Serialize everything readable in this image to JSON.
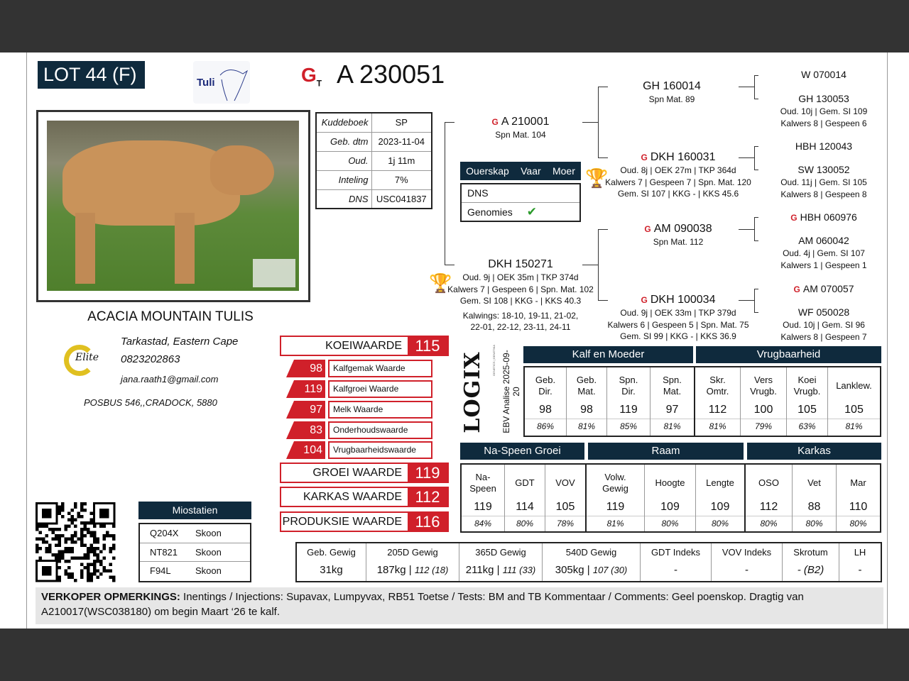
{
  "lot": "LOT 44 (F)",
  "id": "A 230051",
  "logo_tuli": "Tuli",
  "logo_gt": "GT",
  "info": [
    {
      "k": "Kuddeboek",
      "v": "SP"
    },
    {
      "k": "Geb. dtm",
      "v": "2023-11-04"
    },
    {
      "k": "Oud.",
      "v": "1j 11m"
    },
    {
      "k": "Inteling",
      "v": "7%"
    },
    {
      "k": "DNS",
      "v": "USC041837"
    }
  ],
  "parentage": {
    "headers": [
      "Ouerskap",
      "Vaar",
      "Moer"
    ],
    "rows": [
      "DNS",
      "Genomies"
    ],
    "genomies_check": "✔"
  },
  "pedigree": {
    "sire": {
      "name": "A 210001",
      "lines": [
        "Spn Mat. 104"
      ]
    },
    "dam": {
      "name": "DKH 150271",
      "lines": [
        "Oud. 9j | OEK 35m | TKP 374d",
        "Kalwers 7 | Gespeen 6 | Spn. Mat. 102",
        "Gem. SI 108 | KKG - | KKS 40.3"
      ],
      "calvings": [
        "Kalwings: 18-10, 19-11, 21-02,",
        "22-01, 22-12, 23-11, 24-11"
      ]
    },
    "ss": {
      "name": "GH 160014",
      "lines": [
        "Spn Mat. 89"
      ]
    },
    "sd": {
      "name": "DKH 160031",
      "lines": [
        "Oud. 8j | OEK 27m | TKP 364d",
        "Kalwers 7 | Gespeen 7 | Spn. Mat. 120",
        "Gem. SI 107 | KKG - | KKS 45.6"
      ]
    },
    "ds": {
      "name": "AM 090038",
      "lines": [
        "Spn Mat. 112"
      ]
    },
    "dd": {
      "name": "DKH 100034",
      "lines": [
        "Oud. 9j | OEK 33m | TKP 379d",
        "Kalwers 6 | Gespeen 5 | Spn. Mat. 75",
        "Gem. SI 99 | KKG - | KKS 36.9"
      ]
    },
    "g": [
      {
        "name": "W 070014",
        "lines": []
      },
      {
        "name": "GH 130053",
        "lines": [
          "Oud. 10j | Gem. SI 109",
          "Kalwers 8 | Gespeen 6"
        ]
      },
      {
        "name": "HBH 120043",
        "lines": []
      },
      {
        "name": "SW 130052",
        "lines": [
          "Oud. 11j | Gem. SI 105",
          "Kalwers 8 | Gespeen 8"
        ]
      },
      {
        "name": "HBH 060976",
        "lines": []
      },
      {
        "name": "AM 060042",
        "lines": [
          "Oud. 4j | Gem. SI 107",
          "Kalwers 1 | Gespeen 1"
        ]
      },
      {
        "name": "AM 070057",
        "lines": []
      },
      {
        "name": "WF 050028",
        "lines": [
          "Oud. 10j | Gem. SI 96",
          "Kalwers 8 | Gespeen 7"
        ]
      }
    ]
  },
  "breeder": {
    "farm": "ACACIA MOUNTAIN TULIS",
    "location": "Tarkastad, Eastern Cape",
    "phone": "0823202863",
    "email": "jana.raath1@gmail.com",
    "address": "POSBUS  546,,CRADOCK,  5880",
    "logo": "Elite"
  },
  "indexes": {
    "koei": {
      "label": "KOEIWAARDE",
      "value": "115"
    },
    "sub": [
      {
        "v": "98",
        "l": "Kalfgemak Waarde"
      },
      {
        "v": "119",
        "l": "Kalfgroei Waarde"
      },
      {
        "v": "97",
        "l": "Melk Waarde"
      },
      {
        "v": "83",
        "l": "Onderhoudswaarde"
      },
      {
        "v": "104",
        "l": "Vrugbaarheidswaarde"
      }
    ],
    "main": [
      {
        "label": "GROEI WAARDE",
        "value": "119"
      },
      {
        "label": "KARKAS WAARDE",
        "value": "112"
      },
      {
        "label": "PRODUKSIE WAARDE",
        "value": "116"
      }
    ]
  },
  "logix": {
    "brand": "LOGIX",
    "tag": "GENETICS | GENETIKA",
    "analysis": "EBV Analise 2025-09-20"
  },
  "ebv1": {
    "groups": [
      "Kalf en Moeder",
      "Vrugbaarheid"
    ],
    "cols": [
      {
        "h": [
          "Geb.",
          "Dir."
        ],
        "v": "98",
        "a": "86%"
      },
      {
        "h": [
          "Geb.",
          "Mat."
        ],
        "v": "98",
        "a": "81%"
      },
      {
        "h": [
          "Spn.",
          "Dir."
        ],
        "v": "119",
        "a": "85%"
      },
      {
        "h": [
          "Spn.",
          "Mat."
        ],
        "v": "97",
        "a": "81%"
      },
      {
        "h": [
          "Skr.",
          "Omtr."
        ],
        "v": "112",
        "a": "81%"
      },
      {
        "h": [
          "Vers",
          "Vrugb."
        ],
        "v": "100",
        "a": "79%"
      },
      {
        "h": [
          "Koei",
          "Vrugb."
        ],
        "v": "105",
        "a": "63%"
      },
      {
        "h": [
          "Lanklew."
        ],
        "v": "105",
        "a": "81%"
      }
    ]
  },
  "ebv2": {
    "groups": [
      "Na-Speen Groei",
      "Raam",
      "Karkas"
    ],
    "cols": [
      {
        "h": [
          "Na-",
          "Speen"
        ],
        "v": "119",
        "a": "84%"
      },
      {
        "h": [
          "GDT"
        ],
        "v": "114",
        "a": "80%"
      },
      {
        "h": [
          "VOV"
        ],
        "v": "105",
        "a": "78%"
      },
      {
        "h": [
          "Volw.",
          "Gewig"
        ],
        "v": "119",
        "a": "81%"
      },
      {
        "h": [
          "Hoogte"
        ],
        "v": "109",
        "a": "80%"
      },
      {
        "h": [
          "Lengte"
        ],
        "v": "109",
        "a": "80%"
      },
      {
        "h": [
          "OSO"
        ],
        "v": "112",
        "a": "80%"
      },
      {
        "h": [
          "Vet"
        ],
        "v": "88",
        "a": "80%"
      },
      {
        "h": [
          "Mar"
        ],
        "v": "110",
        "a": "80%"
      }
    ]
  },
  "weights": [
    {
      "h": "Geb. Gewig",
      "v": "31kg",
      "e": ""
    },
    {
      "h": "205D Gewig",
      "v": "187kg",
      "e": "112 (18)"
    },
    {
      "h": "365D Gewig",
      "v": "211kg",
      "e": "111 (33)"
    },
    {
      "h": "540D Gewig",
      "v": "305kg",
      "e": "107 (30)"
    },
    {
      "h": "GDT Indeks",
      "v": "-",
      "e": ""
    },
    {
      "h": "VOV Indeks",
      "v": "-",
      "e": ""
    },
    {
      "h": "Skrotum",
      "v": "- (B2)",
      "e": ""
    },
    {
      "h": "LH",
      "v": "-",
      "e": ""
    }
  ],
  "myostatin": {
    "title": "Miostatien",
    "rows": [
      {
        "k": "Q204X",
        "v": "Skoon"
      },
      {
        "k": "NT821",
        "v": "Skoon"
      },
      {
        "k": "F94L",
        "v": "Skoon"
      }
    ]
  },
  "remarks": {
    "label": "VERKOPER OPMERKINGS:",
    "text": " Inentings / Injections: Supavax, Lumpyvax, RB51 Toetse / Tests: BM and TB Kommentaar / Comments: Geel poenskop. Dragtig van A210017(WSC038180) om begin Maart ‘26 te kalf."
  },
  "colors": {
    "navy": "#0f2a3d",
    "red": "#d0202a",
    "check": "#2a9a2a"
  }
}
